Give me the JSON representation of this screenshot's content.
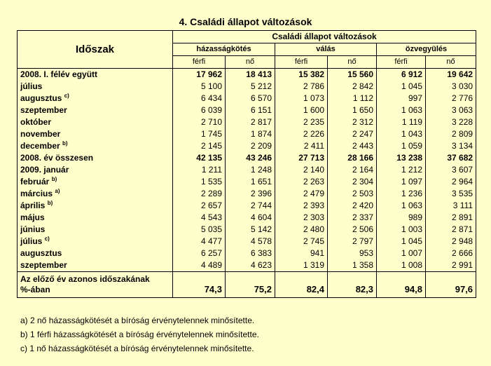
{
  "title": "4. Családi állapot változások",
  "header": {
    "period": "Időszak",
    "group": "Családi állapot változások",
    "categories": [
      "házasságkötés",
      "válás",
      "özvegyülés"
    ],
    "sexes": [
      "férfi",
      "nő",
      "férfi",
      "nő",
      "férfi",
      "nő"
    ]
  },
  "rows": [
    {
      "label": "2008. I. félév együtt",
      "sup": "",
      "bold": true,
      "values": [
        "17 962",
        "18 413",
        "15 382",
        "15 560",
        "6 912",
        "19 642"
      ]
    },
    {
      "label": "július",
      "sup": "",
      "bold": false,
      "values": [
        "5 100",
        "5 212",
        "2 786",
        "2 842",
        "1 045",
        "3 030"
      ]
    },
    {
      "label": "augusztus",
      "sup": "c)",
      "bold": false,
      "values": [
        "6 434",
        "6 570",
        "1 073",
        "1 112",
        "997",
        "2 776"
      ]
    },
    {
      "label": "szeptember",
      "sup": "",
      "bold": false,
      "values": [
        "6 039",
        "6 151",
        "1 600",
        "1 650",
        "1 063",
        "3 063"
      ]
    },
    {
      "label": "október",
      "sup": "",
      "bold": false,
      "values": [
        "2 710",
        "2 817",
        "2 235",
        "2 312",
        "1 119",
        "3 228"
      ]
    },
    {
      "label": "november",
      "sup": "",
      "bold": false,
      "values": [
        "1 745",
        "1 874",
        "2 226",
        "2 247",
        "1 043",
        "2 809"
      ]
    },
    {
      "label": "december",
      "sup": "b)",
      "bold": false,
      "values": [
        "2 145",
        "2 209",
        "2 411",
        "2 443",
        "1 059",
        "3 134"
      ]
    },
    {
      "label": "2008. év összesen",
      "sup": "",
      "bold": true,
      "values": [
        "42 135",
        "43 246",
        "27 713",
        "28 166",
        "13 238",
        "37 682"
      ]
    },
    {
      "label": "2009. január",
      "sup": "",
      "bold": false,
      "values": [
        "1 211",
        "1 248",
        "2 140",
        "2 164",
        "1 212",
        "3 607"
      ]
    },
    {
      "label": "február",
      "sup": "b)",
      "bold": false,
      "values": [
        "1 535",
        "1 651",
        "2 263",
        "2 304",
        "1 097",
        "2 964"
      ]
    },
    {
      "label": "március",
      "sup": "a)",
      "bold": false,
      "values": [
        "2 289",
        "2 396",
        "2 479",
        "2 503",
        "1 236",
        "3 535"
      ]
    },
    {
      "label": "április",
      "sup": "b)",
      "bold": false,
      "values": [
        "2 657",
        "2 744",
        "2 393",
        "2 420",
        "1 063",
        "3 111"
      ]
    },
    {
      "label": "május",
      "sup": "",
      "bold": false,
      "values": [
        "4 543",
        "4 604",
        "2 303",
        "2 337",
        "989",
        "2 891"
      ]
    },
    {
      "label": "június",
      "sup": "",
      "bold": false,
      "values": [
        "5 035",
        "5 142",
        "2 480",
        "2 506",
        "1 003",
        "2 871"
      ]
    },
    {
      "label": "július",
      "sup": "c)",
      "bold": false,
      "values": [
        "4 477",
        "4 578",
        "2 745",
        "2 797",
        "1 045",
        "2 948"
      ]
    },
    {
      "label": "augusztus",
      "sup": "",
      "bold": false,
      "values": [
        "6 257",
        "6 383",
        "941",
        "953",
        "1 007",
        "2 666"
      ]
    },
    {
      "label": "szeptember",
      "sup": "",
      "bold": false,
      "values": [
        "4 489",
        "4 623",
        "1 319",
        "1 358",
        "1 008",
        "2 991"
      ]
    }
  ],
  "summary": {
    "label_line1": "Az előző év azonos időszakának",
    "label_line2": "%-ában",
    "values": [
      "74,3",
      "75,2",
      "82,4",
      "82,3",
      "94,8",
      "97,6"
    ]
  },
  "notes": [
    "a) 2 nő házasságkötését a bíróság érvénytelennek minősítette.",
    "b) 1 férfi házasságkötését a bíróság érvénytelennek minősítette.",
    "c) 1 nő házasságkötését a bíróság érvénytelennek minősítette."
  ]
}
